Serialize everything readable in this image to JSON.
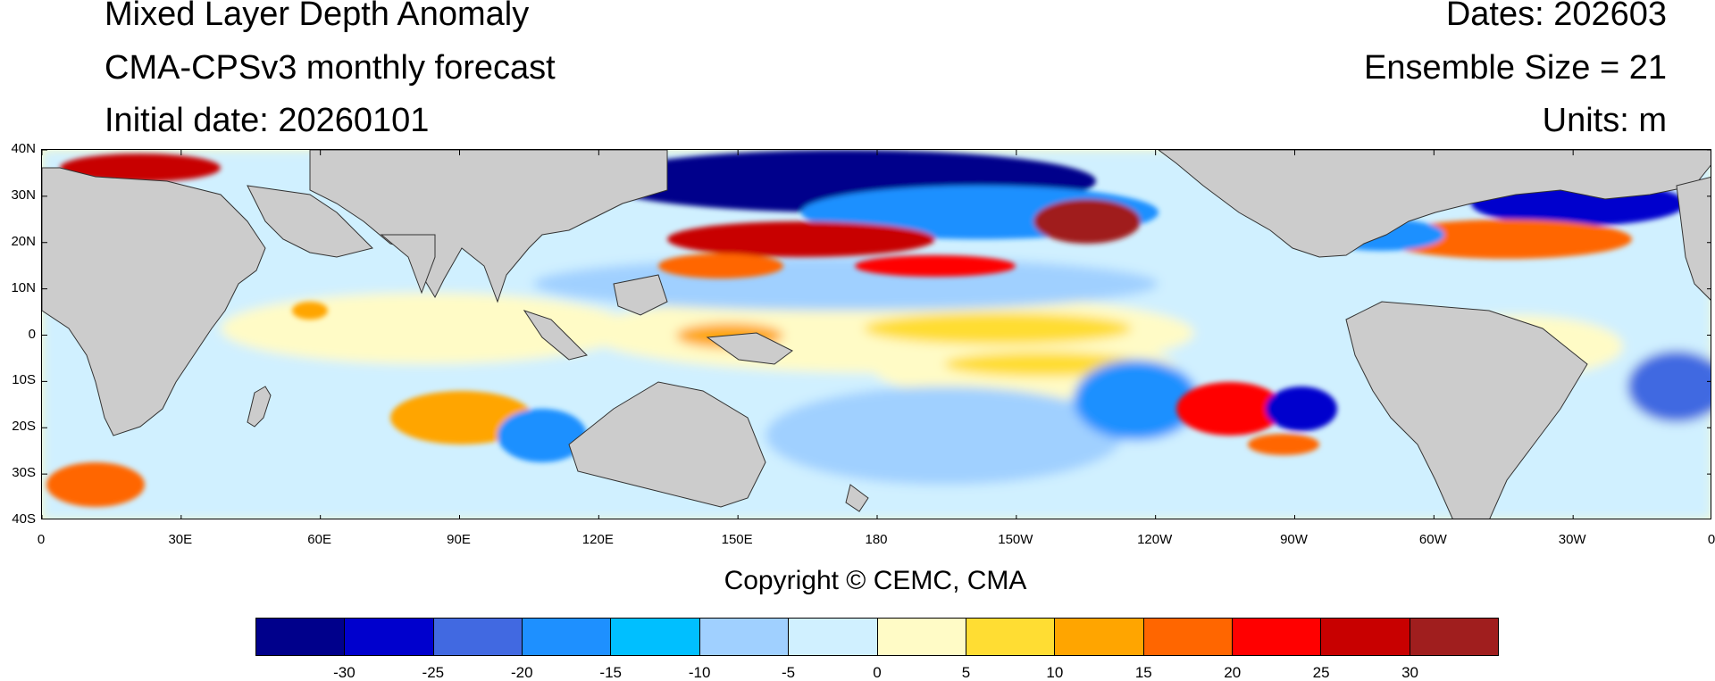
{
  "header": {
    "title": "Mixed Layer Depth Anomaly",
    "model": "CMA-CPSv3 monthly forecast",
    "initial_date": "Initial date: 20260101",
    "dates": "Dates: 202603",
    "ensemble": "Ensemble Size = 21",
    "units": "Units: m"
  },
  "map": {
    "projection": "cylindrical equidistant",
    "lon_range": [
      0,
      360
    ],
    "lat_range": [
      -40,
      40
    ],
    "land_color": "#cccccc",
    "lat_ticks": [
      {
        "value": 40,
        "label": "40N"
      },
      {
        "value": 30,
        "label": "30N"
      },
      {
        "value": 20,
        "label": "20N"
      },
      {
        "value": 10,
        "label": "10N"
      },
      {
        "value": 0,
        "label": "0"
      },
      {
        "value": -10,
        "label": "10S"
      },
      {
        "value": -20,
        "label": "20S"
      },
      {
        "value": -30,
        "label": "30S"
      },
      {
        "value": -40,
        "label": "40S"
      }
    ],
    "lon_ticks": [
      {
        "value": 0,
        "label": "0"
      },
      {
        "value": 30,
        "label": "30E"
      },
      {
        "value": 60,
        "label": "60E"
      },
      {
        "value": 90,
        "label": "90E"
      },
      {
        "value": 120,
        "label": "120E"
      },
      {
        "value": 150,
        "label": "150E"
      },
      {
        "value": 180,
        "label": "180"
      },
      {
        "value": 210,
        "label": "150W"
      },
      {
        "value": 240,
        "label": "120W"
      },
      {
        "value": 270,
        "label": "90W"
      },
      {
        "value": 300,
        "label": "60W"
      },
      {
        "value": 330,
        "label": "30W"
      },
      {
        "value": 360,
        "label": "0"
      }
    ]
  },
  "colorbar": {
    "colors": [
      "#00008b",
      "#0000cd",
      "#4169e1",
      "#1e90ff",
      "#00bfff",
      "#a0d0ff",
      "#d0f0ff",
      "#fffbc6",
      "#ffdd33",
      "#ffa500",
      "#ff6600",
      "#ff0000",
      "#c80000",
      "#a01e1e"
    ],
    "labels": [
      "-30",
      "-25",
      "-20",
      "-15",
      "-10",
      "-5",
      "0",
      "5",
      "10",
      "15",
      "20",
      "25",
      "30"
    ]
  },
  "footer": {
    "copyright": "Copyright © CEMC, CMA"
  }
}
